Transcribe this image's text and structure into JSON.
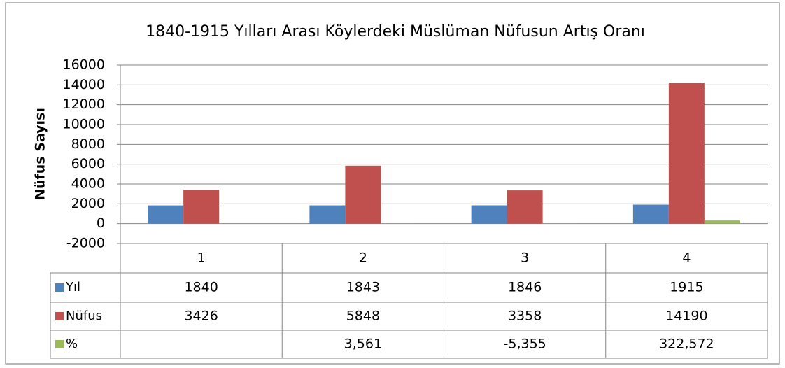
{
  "chart_data": {
    "type": "bar",
    "title": "1840-1915 Yılları Arası Köylerdeki Müslüman Nüfusun Artış Oranı",
    "y_label": "Nüfus Sayısı",
    "categories": [
      "1",
      "2",
      "3",
      "4"
    ],
    "series": [
      {
        "name": "Yıl",
        "color": "#4f81bd",
        "values": [
          1840,
          1843,
          1846,
          1915
        ]
      },
      {
        "name": "Nüfus",
        "color": "#c0504d",
        "values": [
          3426,
          5848,
          3358,
          14190
        ]
      },
      {
        "name": "%",
        "color": "#9bbb59",
        "values": [
          null,
          3.561,
          -5.355,
          322.572
        ],
        "value_labels": [
          null,
          "3,561",
          "-5,355",
          "322,572"
        ]
      }
    ],
    "ylim": [
      -2000,
      16000
    ],
    "yticks": [
      -2000,
      0,
      2000,
      4000,
      6000,
      8000,
      10000,
      12000,
      14000,
      16000
    ],
    "grid": true,
    "data_table": true
  }
}
